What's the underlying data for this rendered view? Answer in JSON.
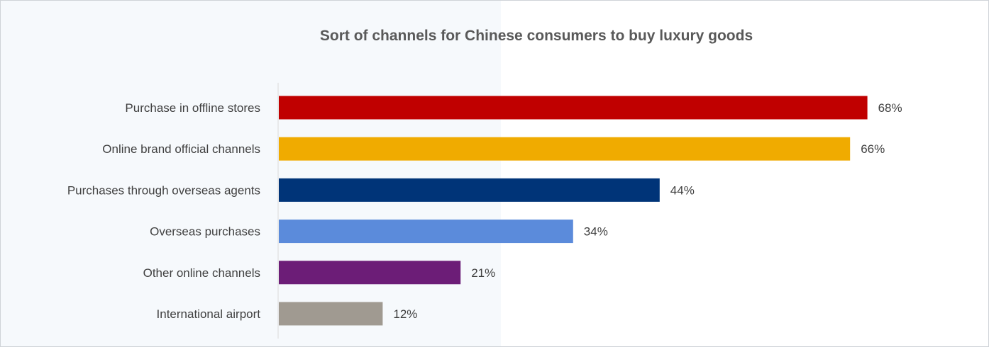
{
  "chart_data": {
    "type": "bar",
    "orientation": "horizontal",
    "title": "Sort of channels for Chinese consumers to buy luxury goods",
    "xlabel": "",
    "ylabel": "",
    "categories": [
      "Purchase in offline stores",
      "Online brand official channels",
      "Purchases through overseas agents",
      "Overseas purchases",
      "Other online channels",
      "International airport"
    ],
    "values": [
      68,
      66,
      44,
      34,
      21,
      12
    ],
    "value_labels": [
      "68%",
      "66%",
      "44%",
      "34%",
      "21%",
      "12%"
    ],
    "unit": "%",
    "colors": [
      "#c00000",
      "#f0ab00",
      "#003478",
      "#5b8bdb",
      "#6c1d77",
      "#a09a91"
    ],
    "grid": false,
    "legend": "none"
  }
}
